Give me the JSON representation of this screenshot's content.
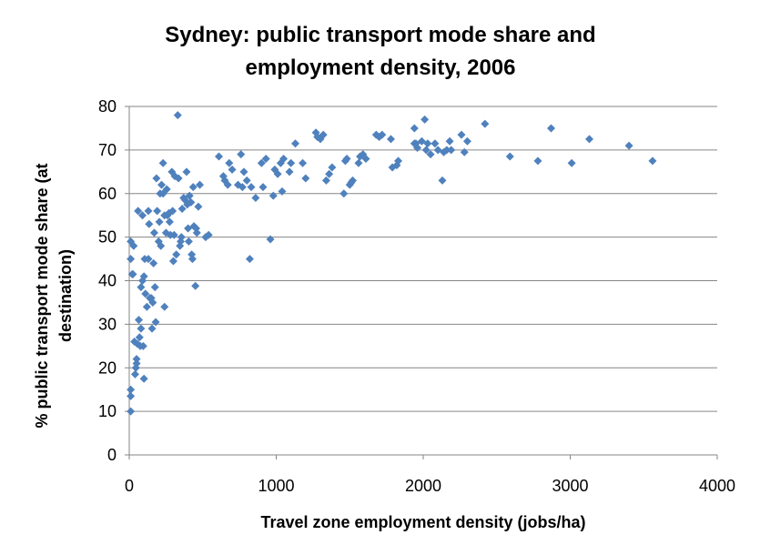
{
  "chart_data": {
    "type": "scatter",
    "title_lines": [
      "Sydney: public transport mode share and",
      "employment density, 2006"
    ],
    "xlabel": "Travel zone employment density (jobs/ha)",
    "ylabel_lines": [
      "% public transport mode share (at",
      "destination)"
    ],
    "xlim": [
      0,
      4000
    ],
    "ylim": [
      0,
      80
    ],
    "x_ticks": [
      "0",
      "1000",
      "2000",
      "3000",
      "4000"
    ],
    "y_ticks": [
      "0",
      "10",
      "20",
      "30",
      "40",
      "50",
      "60",
      "70",
      "80"
    ],
    "grid": "horizontal",
    "legend": "none",
    "marker": "diamond",
    "marker_color": "#4f81bd",
    "points": [
      [
        10,
        10
      ],
      [
        10,
        13.5
      ],
      [
        10,
        15
      ],
      [
        10,
        45
      ],
      [
        10,
        49
      ],
      [
        20,
        41.5
      ],
      [
        25,
        41.5
      ],
      [
        30,
        48
      ],
      [
        35,
        26
      ],
      [
        40,
        18.5
      ],
      [
        45,
        20
      ],
      [
        50,
        21
      ],
      [
        50,
        22
      ],
      [
        55,
        25.5
      ],
      [
        60,
        56
      ],
      [
        65,
        31
      ],
      [
        70,
        27
      ],
      [
        75,
        25
      ],
      [
        80,
        29
      ],
      [
        80,
        38.5
      ],
      [
        90,
        40
      ],
      [
        90,
        55
      ],
      [
        95,
        25
      ],
      [
        100,
        17.5
      ],
      [
        100,
        41
      ],
      [
        105,
        45
      ],
      [
        110,
        37
      ],
      [
        120,
        34
      ],
      [
        130,
        45
      ],
      [
        130,
        56
      ],
      [
        135,
        53
      ],
      [
        140,
        36
      ],
      [
        150,
        36
      ],
      [
        155,
        29
      ],
      [
        160,
        35
      ],
      [
        165,
        44
      ],
      [
        170,
        51
      ],
      [
        175,
        38.5
      ],
      [
        180,
        30.5
      ],
      [
        185,
        63.5
      ],
      [
        190,
        56
      ],
      [
        200,
        49
      ],
      [
        205,
        53.5
      ],
      [
        210,
        60
      ],
      [
        215,
        48
      ],
      [
        220,
        62
      ],
      [
        230,
        60
      ],
      [
        230,
        67
      ],
      [
        240,
        34
      ],
      [
        240,
        55
      ],
      [
        250,
        51
      ],
      [
        255,
        61
      ],
      [
        260,
        55
      ],
      [
        270,
        55.5
      ],
      [
        275,
        53.5
      ],
      [
        280,
        50.5
      ],
      [
        290,
        65
      ],
      [
        295,
        56
      ],
      [
        300,
        44.5
      ],
      [
        305,
        50.5
      ],
      [
        310,
        64
      ],
      [
        320,
        46
      ],
      [
        330,
        78
      ],
      [
        335,
        63.5
      ],
      [
        345,
        48
      ],
      [
        350,
        49
      ],
      [
        355,
        50
      ],
      [
        360,
        56.5
      ],
      [
        370,
        59
      ],
      [
        380,
        58.5
      ],
      [
        390,
        65
      ],
      [
        395,
        57.5
      ],
      [
        400,
        52
      ],
      [
        405,
        49
      ],
      [
        410,
        59.5
      ],
      [
        420,
        58
      ],
      [
        425,
        46
      ],
      [
        430,
        45
      ],
      [
        435,
        61.5
      ],
      [
        440,
        52.5
      ],
      [
        450,
        38.8
      ],
      [
        455,
        52
      ],
      [
        460,
        51
      ],
      [
        470,
        57
      ],
      [
        480,
        62
      ],
      [
        520,
        50
      ],
      [
        540,
        50.5
      ],
      [
        610,
        68.5
      ],
      [
        640,
        64
      ],
      [
        650,
        63
      ],
      [
        670,
        62
      ],
      [
        680,
        67
      ],
      [
        700,
        65.5
      ],
      [
        740,
        62
      ],
      [
        760,
        69
      ],
      [
        770,
        61.5
      ],
      [
        780,
        65
      ],
      [
        800,
        63
      ],
      [
        820,
        45
      ],
      [
        830,
        61.5
      ],
      [
        860,
        59
      ],
      [
        900,
        67
      ],
      [
        910,
        61.5
      ],
      [
        930,
        68
      ],
      [
        960,
        49.5
      ],
      [
        980,
        59.5
      ],
      [
        990,
        65.5
      ],
      [
        1010,
        64.5
      ],
      [
        1030,
        67
      ],
      [
        1040,
        60.5
      ],
      [
        1050,
        68
      ],
      [
        1090,
        65
      ],
      [
        1100,
        67
      ],
      [
        1130,
        71.5
      ],
      [
        1180,
        67
      ],
      [
        1200,
        63.5
      ],
      [
        1270,
        74
      ],
      [
        1280,
        73
      ],
      [
        1300,
        72.5
      ],
      [
        1320,
        73.5
      ],
      [
        1340,
        63
      ],
      [
        1360,
        64.5
      ],
      [
        1380,
        66
      ],
      [
        1460,
        60
      ],
      [
        1470,
        67.5
      ],
      [
        1480,
        68
      ],
      [
        1500,
        62
      ],
      [
        1510,
        62.5
      ],
      [
        1520,
        63
      ],
      [
        1560,
        67
      ],
      [
        1570,
        68.5
      ],
      [
        1590,
        69
      ],
      [
        1610,
        68
      ],
      [
        1680,
        73.5
      ],
      [
        1700,
        73
      ],
      [
        1720,
        73.5
      ],
      [
        1780,
        72.5
      ],
      [
        1790,
        66
      ],
      [
        1820,
        66.5
      ],
      [
        1830,
        67.5
      ],
      [
        1940,
        75
      ],
      [
        1940,
        71.5
      ],
      [
        1950,
        71.5
      ],
      [
        1960,
        70.5
      ],
      [
        1990,
        72
      ],
      [
        2010,
        77
      ],
      [
        2020,
        70
      ],
      [
        2030,
        71.5
      ],
      [
        2050,
        69
      ],
      [
        2080,
        71.5
      ],
      [
        2100,
        70
      ],
      [
        2130,
        63
      ],
      [
        2140,
        69.5
      ],
      [
        2160,
        70
      ],
      [
        2180,
        72
      ],
      [
        2190,
        70
      ],
      [
        2260,
        73.5
      ],
      [
        2280,
        69.5
      ],
      [
        2300,
        72
      ],
      [
        2420,
        76
      ],
      [
        2590,
        68.5
      ],
      [
        2780,
        67.5
      ],
      [
        2870,
        75
      ],
      [
        3010,
        67
      ],
      [
        3130,
        72.5
      ],
      [
        3400,
        71
      ],
      [
        3560,
        67.5
      ]
    ]
  }
}
